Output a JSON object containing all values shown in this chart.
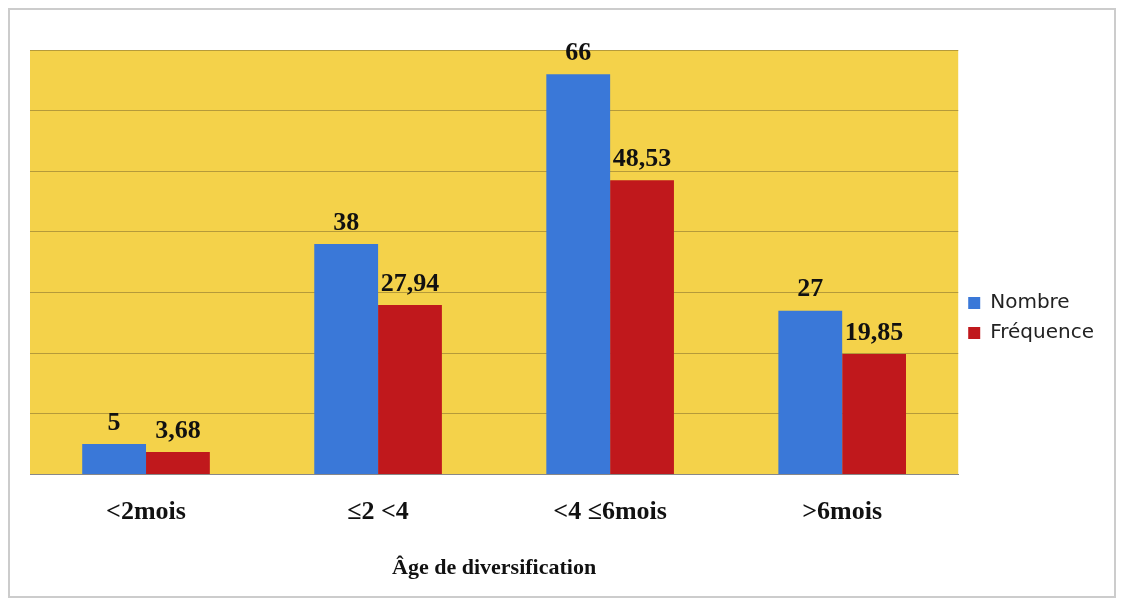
{
  "chart_data": {
    "type": "bar",
    "xlabel": "Âge de diversification",
    "categories": [
      "<2mois",
      "≤2 <4",
      "<4 ≤6mois",
      ">6mois"
    ],
    "series": [
      {
        "name": "Nombre",
        "color": "#3a78d8",
        "values": [
          5,
          38,
          66,
          27
        ],
        "value_labels": [
          "5",
          "38",
          "66",
          "27"
        ]
      },
      {
        "name": "Fréquence",
        "color": "#c0181c",
        "values": [
          3.68,
          27.94,
          48.53,
          19.85
        ],
        "value_labels": [
          "3,68",
          "27,94",
          "48,53",
          "19,85"
        ]
      }
    ],
    "ylim": [
      0,
      70
    ],
    "yticks": [
      0,
      10,
      20,
      30,
      40,
      50,
      60,
      70
    ],
    "grid": "y",
    "legend": "right",
    "tick_labels": "x"
  }
}
